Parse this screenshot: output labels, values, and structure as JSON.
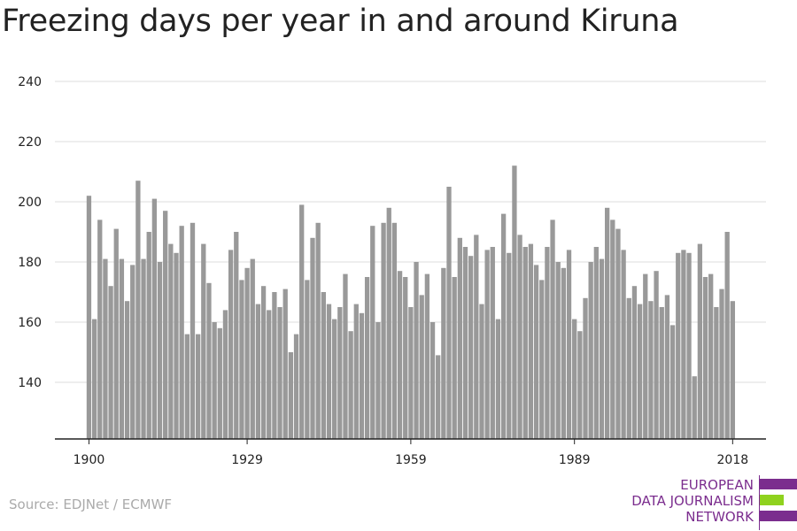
{
  "title": "Freezing days per year in and around Kiruna",
  "source": "Source: EDJNet / ECMWF",
  "logo": {
    "lines": [
      "EUROPEAN",
      "DATA JOURNALISM",
      "NETWORK"
    ],
    "colors": {
      "purple": "#7b2d8e",
      "green": "#8fd21e"
    }
  },
  "chart_data": {
    "type": "bar",
    "title": "Freezing days per year in and around Kiruna",
    "xlabel": "",
    "ylabel": "",
    "x_start": 1900,
    "x_ticks": [
      "1900",
      "1929",
      "1959",
      "1989",
      "2018"
    ],
    "y_ticks": [
      "140",
      "160",
      "180",
      "200",
      "220",
      "240"
    ],
    "ylim": [
      121,
      240
    ],
    "grid": true,
    "bar_color": "#999999",
    "values": [
      202,
      161,
      194,
      181,
      172,
      191,
      181,
      167,
      179,
      207,
      181,
      190,
      201,
      180,
      197,
      186,
      183,
      192,
      156,
      193,
      156,
      186,
      173,
      160,
      158,
      164,
      184,
      190,
      174,
      178,
      181,
      166,
      172,
      164,
      170,
      165,
      171,
      150,
      156,
      199,
      174,
      188,
      193,
      170,
      166,
      161,
      165,
      176,
      157,
      166,
      163,
      175,
      192,
      160,
      193,
      198,
      193,
      177,
      175,
      165,
      180,
      169,
      176,
      160,
      149,
      178,
      205,
      175,
      188,
      185,
      182,
      189,
      166,
      184,
      185,
      161,
      196,
      183,
      212,
      189,
      185,
      186,
      179,
      174,
      185,
      194,
      180,
      178,
      184,
      161,
      157,
      168,
      180,
      185,
      181,
      198,
      194,
      191,
      184,
      168,
      172,
      166,
      176,
      167,
      177,
      165,
      169,
      159,
      183,
      184,
      183,
      142,
      186,
      175,
      176,
      165,
      171,
      190,
      167
    ]
  }
}
